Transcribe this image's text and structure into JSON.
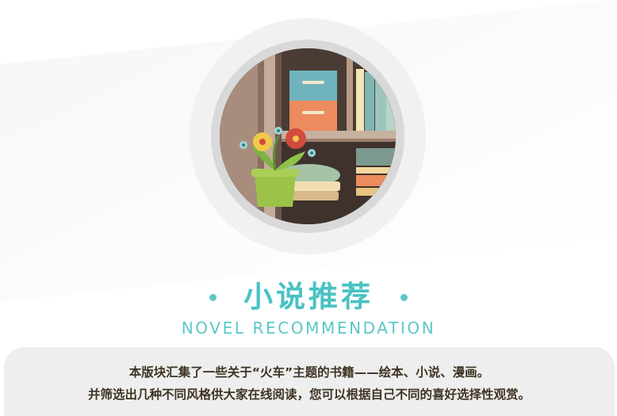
{
  "section": {
    "title": "小说推荐",
    "subtitle": "NOVEL RECOMMENDATION",
    "description_lines": [
      "本版块汇集了一些关于“火车”主题的书籍——绘本、小说、漫画。",
      "并筛选出几种不同风格供大家在线阅读，您可以根据自己不同的喜好选择性观赏。"
    ]
  },
  "illustration": {
    "subject": "bookshelf-with-flower-pot"
  },
  "colors": {
    "accent": "#49c2c2",
    "text": "#3f3424",
    "panel": "#eeeeee"
  }
}
